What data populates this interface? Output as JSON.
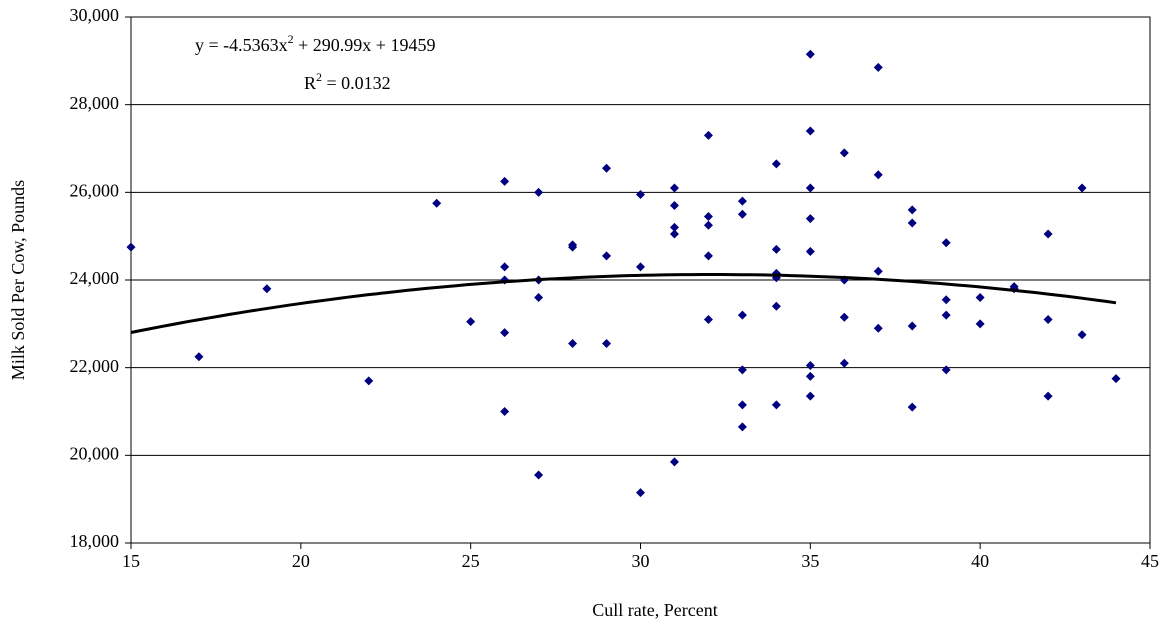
{
  "chart_data": {
    "type": "scatter",
    "x_label": "Cull rate, Percent",
    "y_label": "Milk Sold Per Cow, Pounds",
    "xlim": [
      15,
      45
    ],
    "xticks": [
      15,
      20,
      25,
      30,
      35,
      40,
      45
    ],
    "ylim": [
      18000,
      30000
    ],
    "yticks": [
      {
        "value": 18000,
        "label": "18,000"
      },
      {
        "value": 20000,
        "label": "20,000"
      },
      {
        "value": 22000,
        "label": "22,000"
      },
      {
        "value": 24000,
        "label": "24,000"
      },
      {
        "value": 26000,
        "label": "26,000"
      },
      {
        "value": 28000,
        "label": "28,000"
      },
      {
        "value": 30000,
        "label": "30,000"
      }
    ],
    "grid": true,
    "series": [
      {
        "color": "#000080",
        "x": [
          15,
          17,
          19,
          22,
          24,
          25,
          26,
          26,
          26,
          26,
          26,
          27,
          27,
          27,
          27,
          28,
          28,
          28,
          29,
          29,
          29,
          30,
          30,
          30,
          31,
          31,
          31,
          31,
          31,
          32,
          32,
          32,
          32,
          32,
          33,
          33,
          33,
          33,
          33,
          33,
          34,
          34,
          34,
          34,
          34,
          34,
          35,
          35,
          35,
          35,
          35,
          35,
          35,
          35,
          36,
          36,
          36,
          36,
          37,
          37,
          37,
          37,
          38,
          38,
          38,
          38,
          39,
          39,
          39,
          39,
          40,
          40,
          41,
          41,
          42,
          42,
          42,
          43,
          43,
          44
        ],
        "values": [
          24750,
          22250,
          23800,
          21700,
          25750,
          23050,
          26250,
          24300,
          24000,
          22800,
          21000,
          26000,
          24000,
          23600,
          19550,
          24800,
          24750,
          22550,
          26550,
          24550,
          22550,
          25950,
          24300,
          19150,
          26100,
          25700,
          25200,
          25050,
          19850,
          27300,
          25450,
          25250,
          24550,
          23100,
          25800,
          25500,
          23200,
          21950,
          21150,
          20650,
          26650,
          24700,
          24150,
          24050,
          23400,
          21150,
          29150,
          27400,
          26100,
          25400,
          24650,
          22050,
          21800,
          21350,
          26900,
          24000,
          23150,
          22100,
          28850,
          26400,
          24200,
          22900,
          25600,
          25300,
          22950,
          21100,
          24850,
          23550,
          23200,
          21950,
          23600,
          23000,
          23850,
          23800,
          25050,
          23100,
          21350,
          26100,
          22750,
          21750
        ]
      }
    ],
    "trendline": {
      "type": "polynomial",
      "coefficients": [
        -4.5363,
        290.99,
        19459
      ],
      "x_range": [
        15,
        44
      ],
      "color": "#000000"
    },
    "equation": [
      "y = -4.5363x",
      "2",
      " + 290.99x + 19459"
    ],
    "r_squared": [
      "R",
      "2",
      " = 0.0132"
    ]
  }
}
